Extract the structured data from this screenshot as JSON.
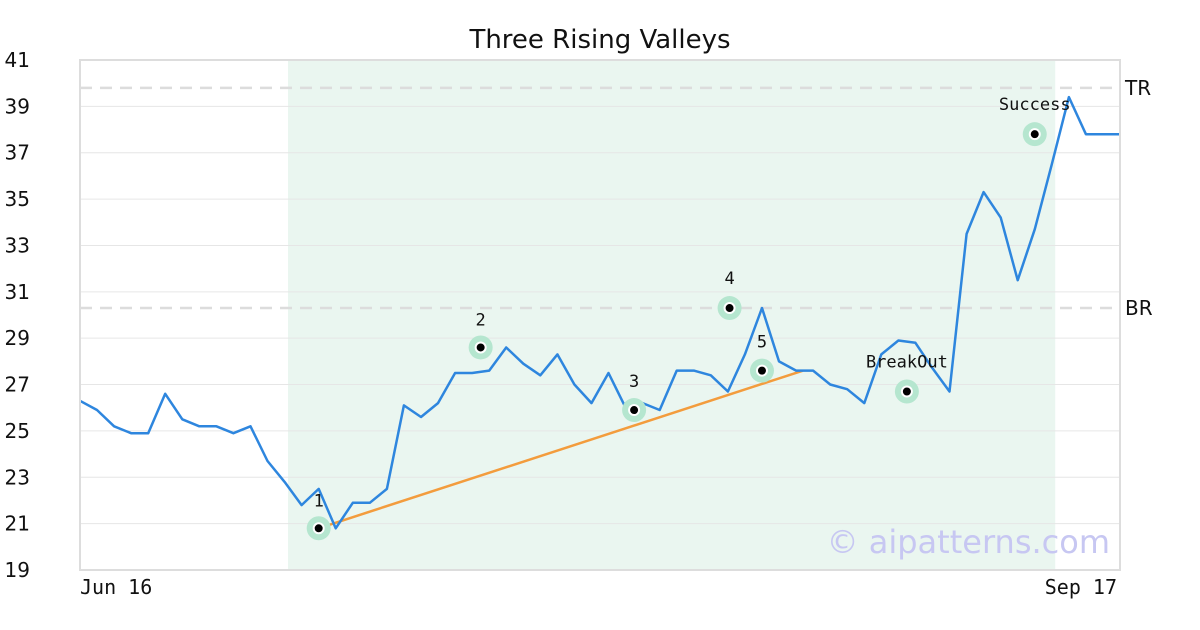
{
  "chart_data": {
    "type": "line",
    "title": "Three Rising Valleys",
    "xlabel": "",
    "ylabel": "",
    "ylim": [
      19,
      41
    ],
    "y_ticks": [
      "19",
      "21",
      "23",
      "25",
      "27",
      "29",
      "31",
      "33",
      "35",
      "37",
      "39",
      "41"
    ],
    "x_tick_labels": [
      "Jun 16",
      "Sep 17"
    ],
    "x_range": [
      0,
      61
    ],
    "grid": "horizontal",
    "series": [
      {
        "color": "#2e86de",
        "x": [
          0,
          1,
          2,
          3,
          4,
          5,
          6,
          7,
          8,
          9,
          10,
          11,
          12,
          13,
          14,
          15,
          16,
          17,
          18,
          19,
          20,
          21,
          22,
          23,
          24,
          25,
          26,
          27,
          28,
          29,
          30,
          31,
          32,
          33,
          34,
          35,
          36,
          37,
          38,
          39,
          40,
          41,
          42,
          43,
          44,
          45,
          46,
          47,
          48,
          49,
          50,
          51,
          52,
          53,
          54,
          55,
          56,
          57,
          58,
          59,
          60,
          61
        ],
        "values": [
          26.3,
          25.9,
          25.2,
          24.9,
          24.9,
          26.6,
          25.5,
          25.2,
          25.2,
          24.9,
          25.2,
          23.7,
          22.8,
          21.8,
          22.5,
          20.8,
          21.9,
          21.9,
          22.5,
          26.1,
          25.6,
          26.2,
          27.5,
          27.5,
          27.6,
          28.6,
          27.9,
          27.4,
          28.3,
          27.0,
          26.2,
          27.5,
          26.0,
          26.2,
          25.9,
          27.6,
          27.6,
          27.4,
          26.7,
          28.3,
          30.3,
          28.0,
          27.6,
          27.6,
          27.0,
          26.8,
          26.2,
          28.3,
          28.9,
          28.8,
          27.7,
          26.7,
          33.5,
          35.3,
          34.2,
          31.5,
          33.7,
          36.5,
          39.4,
          37.8,
          37.8,
          37.8
        ]
      }
    ],
    "levels": [
      {
        "name": "TR",
        "value": 39.8
      },
      {
        "name": "BR",
        "value": 30.3
      }
    ],
    "pattern_region": {
      "x_start": 12.2,
      "x_end": 57.2,
      "color": "#eaf6f0"
    },
    "trendline": {
      "color": "#f39c3d",
      "from": {
        "x": 14,
        "y": 20.8
      },
      "to": {
        "x": 42.4,
        "y": 27.6
      }
    },
    "points": [
      {
        "label": "1",
        "x": 14,
        "y": 20.8
      },
      {
        "label": "2",
        "x": 23.5,
        "y": 28.6
      },
      {
        "label": "3",
        "x": 32.5,
        "y": 25.9
      },
      {
        "label": "4",
        "x": 38.1,
        "y": 30.3
      },
      {
        "label": "5",
        "x": 40.0,
        "y": 27.6
      },
      {
        "label": "BreakOut",
        "x": 48.5,
        "y": 26.7
      },
      {
        "label": "Success",
        "x": 56,
        "y": 37.8
      }
    ],
    "watermark": "© aipatterns.com"
  }
}
